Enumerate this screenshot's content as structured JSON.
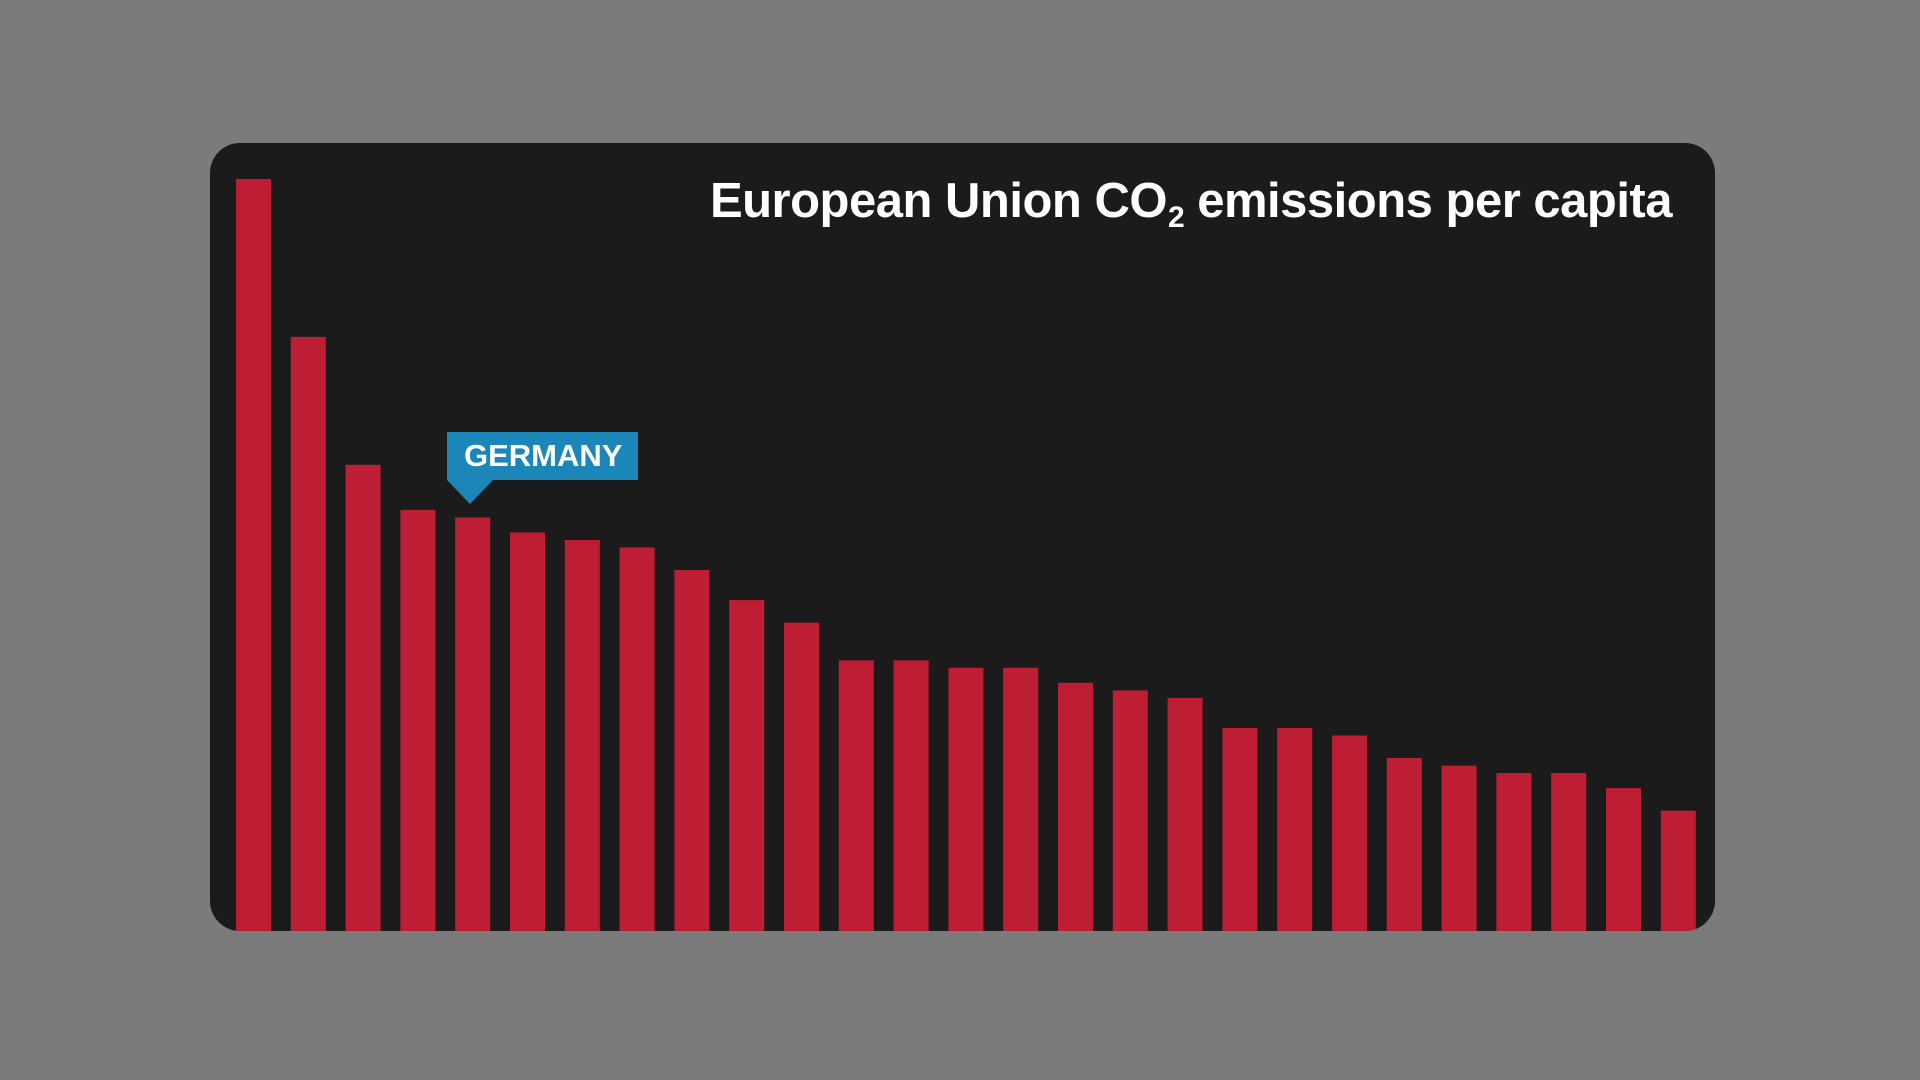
{
  "chart": {
    "title_main": "European Union CO",
    "title_subscript": "2",
    "title_rest": " emissions per capita",
    "highlight_label": "GERMANY",
    "highlight_index": 4,
    "colors": {
      "background": "#7a7b7a",
      "panel": "#1b1b1c",
      "bar": "#be1e33",
      "callout": "#1b86b8",
      "text": "#ffffff"
    }
  },
  "chart_data": {
    "type": "bar",
    "title": "European Union CO2 emissions per capita",
    "xlabel": "",
    "ylabel": "",
    "grid": false,
    "ylim": [
      0,
      100
    ],
    "categories": [
      "",
      "",
      "",
      "",
      "GERMANY",
      "",
      "",
      "",
      "",
      "",
      "",
      "",
      "",
      "",
      "",
      "",
      "",
      "",
      "",
      "",
      "",
      "",
      "",
      "",
      "",
      "",
      ""
    ],
    "values": [
      100,
      79,
      62,
      56,
      55,
      53,
      52,
      51,
      48,
      44,
      41,
      36,
      36,
      35,
      35,
      33,
      32,
      31,
      27,
      27,
      26,
      23,
      22,
      21,
      21,
      19,
      16
    ]
  }
}
